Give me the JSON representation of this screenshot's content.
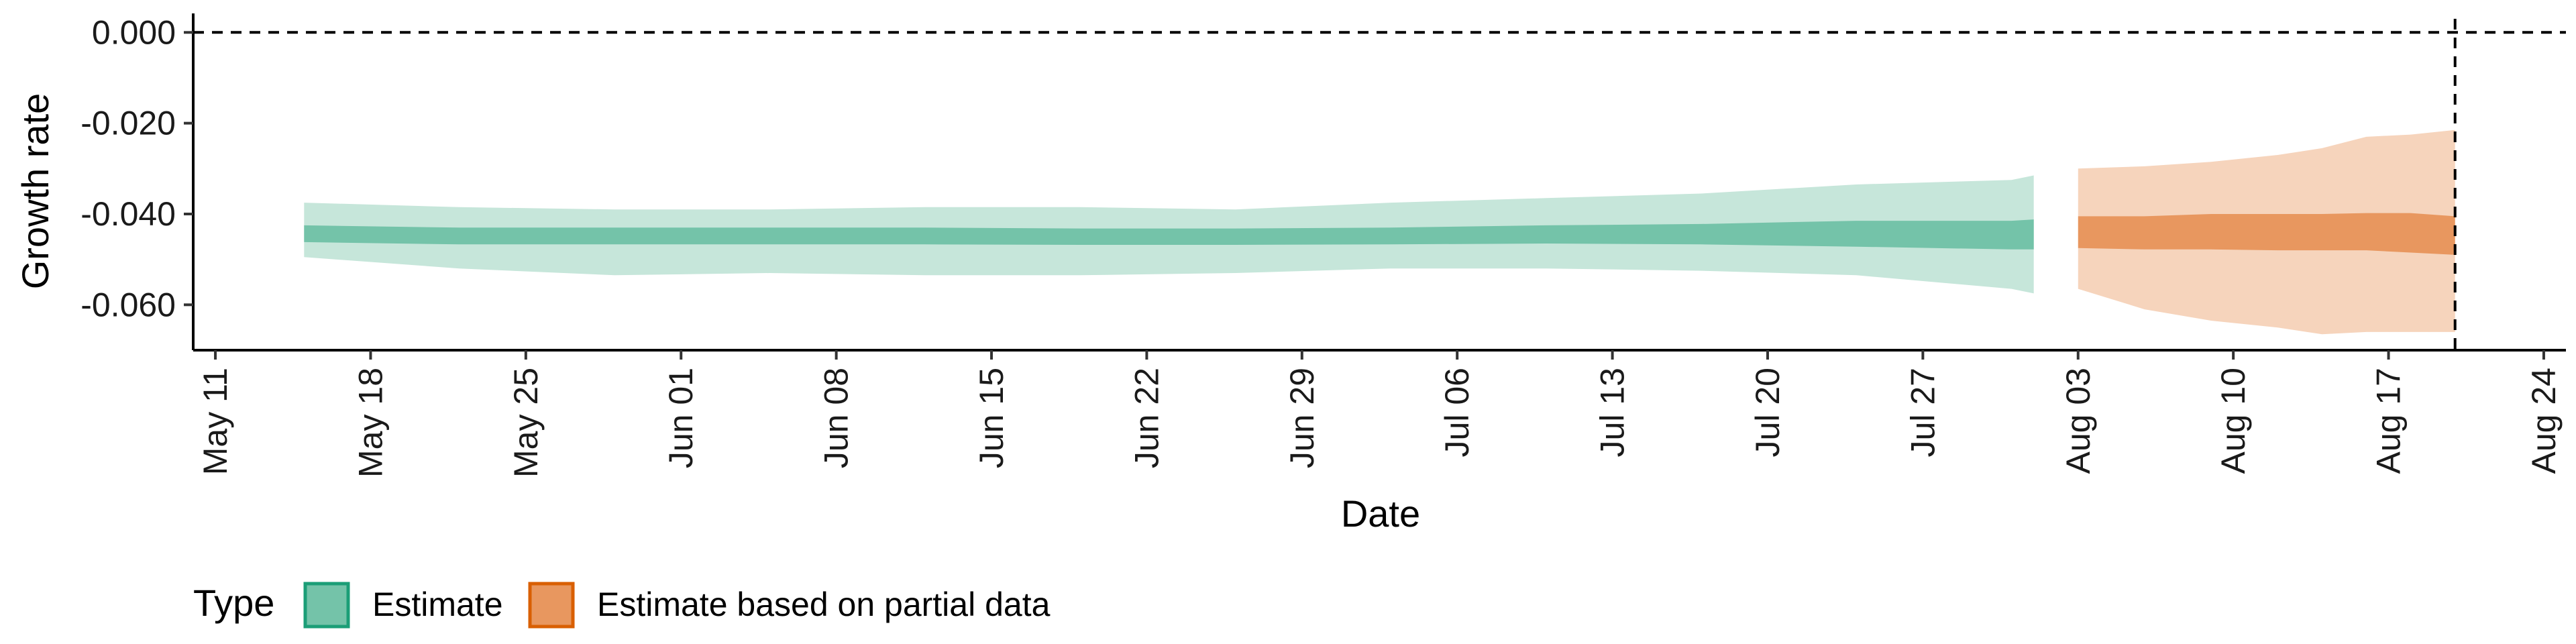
{
  "chart_data": {
    "type": "area",
    "title": "",
    "xlabel": "Date",
    "ylabel": "Growth rate",
    "xlim": [
      "2020-05-10",
      "2020-08-25"
    ],
    "ylim": [
      -0.07,
      0.003
    ],
    "x_ticks": [
      "2020-05-11",
      "2020-05-18",
      "2020-05-25",
      "2020-06-01",
      "2020-06-08",
      "2020-06-15",
      "2020-06-22",
      "2020-06-29",
      "2020-07-06",
      "2020-07-13",
      "2020-07-20",
      "2020-07-27",
      "2020-08-03",
      "2020-08-10",
      "2020-08-17",
      "2020-08-24"
    ],
    "x_tick_labels": [
      "May 11",
      "May 18",
      "May 25",
      "Jun 01",
      "Jun 08",
      "Jun 15",
      "Jun 22",
      "Jun 29",
      "Jul 06",
      "Jul 13",
      "Jul 20",
      "Jul 27",
      "Aug 03",
      "Aug 10",
      "Aug 17",
      "Aug 24"
    ],
    "y_ticks": [
      0.0,
      -0.02,
      -0.04,
      -0.06
    ],
    "y_tick_labels": [
      "0.000",
      "-0.020",
      "-0.040",
      "-0.060"
    ],
    "grid": false,
    "reference_lines": [
      {
        "orientation": "horizontal",
        "value": 0.0,
        "style": "dashed"
      },
      {
        "orientation": "vertical",
        "value": "2020-08-20",
        "style": "dashed"
      }
    ],
    "legend": {
      "position": "bottom-left",
      "title": "Type",
      "entries": [
        {
          "label": "Estimate",
          "color": "#74c3a9",
          "border": "#1b9e77"
        },
        {
          "label": "Estimate based on partial data",
          "color": "#e8975f",
          "border": "#d95f02"
        }
      ]
    },
    "series": [
      {
        "name": "Estimate",
        "outer_color": "#c6e6da",
        "inner_color": "#74c3a9",
        "x": [
          "2020-05-15",
          "2020-05-22",
          "2020-05-29",
          "2020-06-05",
          "2020-06-12",
          "2020-06-19",
          "2020-06-26",
          "2020-07-03",
          "2020-07-10",
          "2020-07-17",
          "2020-07-24",
          "2020-07-31",
          "2020-08-01"
        ],
        "outer_upper": [
          -0.0375,
          -0.0385,
          -0.039,
          -0.039,
          -0.0385,
          -0.0385,
          -0.039,
          -0.0375,
          -0.0365,
          -0.0355,
          -0.0335,
          -0.0325,
          -0.0315
        ],
        "outer_lower": [
          -0.0495,
          -0.052,
          -0.0535,
          -0.053,
          -0.0535,
          -0.0535,
          -0.053,
          -0.052,
          -0.052,
          -0.0525,
          -0.0535,
          -0.0565,
          -0.0575
        ],
        "inner_upper": [
          -0.0425,
          -0.043,
          -0.043,
          -0.043,
          -0.043,
          -0.0432,
          -0.0432,
          -0.043,
          -0.0425,
          -0.0422,
          -0.0415,
          -0.0415,
          -0.0412
        ],
        "inner_lower": [
          -0.0462,
          -0.0467,
          -0.0467,
          -0.0467,
          -0.0467,
          -0.0468,
          -0.0468,
          -0.0467,
          -0.0465,
          -0.0467,
          -0.0472,
          -0.0478,
          -0.0478
        ]
      },
      {
        "name": "Estimate based on partial data",
        "outer_color": "#f6d4bc",
        "inner_color": "#e8975f",
        "x": [
          "2020-08-03",
          "2020-08-06",
          "2020-08-09",
          "2020-08-12",
          "2020-08-14",
          "2020-08-16",
          "2020-08-18",
          "2020-08-20"
        ],
        "outer_upper": [
          -0.03,
          -0.0295,
          -0.0285,
          -0.027,
          -0.0255,
          -0.023,
          -0.0225,
          -0.0215
        ],
        "outer_lower": [
          -0.0565,
          -0.061,
          -0.0635,
          -0.065,
          -0.0665,
          -0.066,
          -0.066,
          -0.066
        ],
        "inner_upper": [
          -0.0405,
          -0.0405,
          -0.04,
          -0.04,
          -0.04,
          -0.0398,
          -0.0398,
          -0.0405
        ],
        "inner_lower": [
          -0.0475,
          -0.0478,
          -0.0478,
          -0.048,
          -0.048,
          -0.048,
          -0.0485,
          -0.049
        ]
      }
    ]
  }
}
